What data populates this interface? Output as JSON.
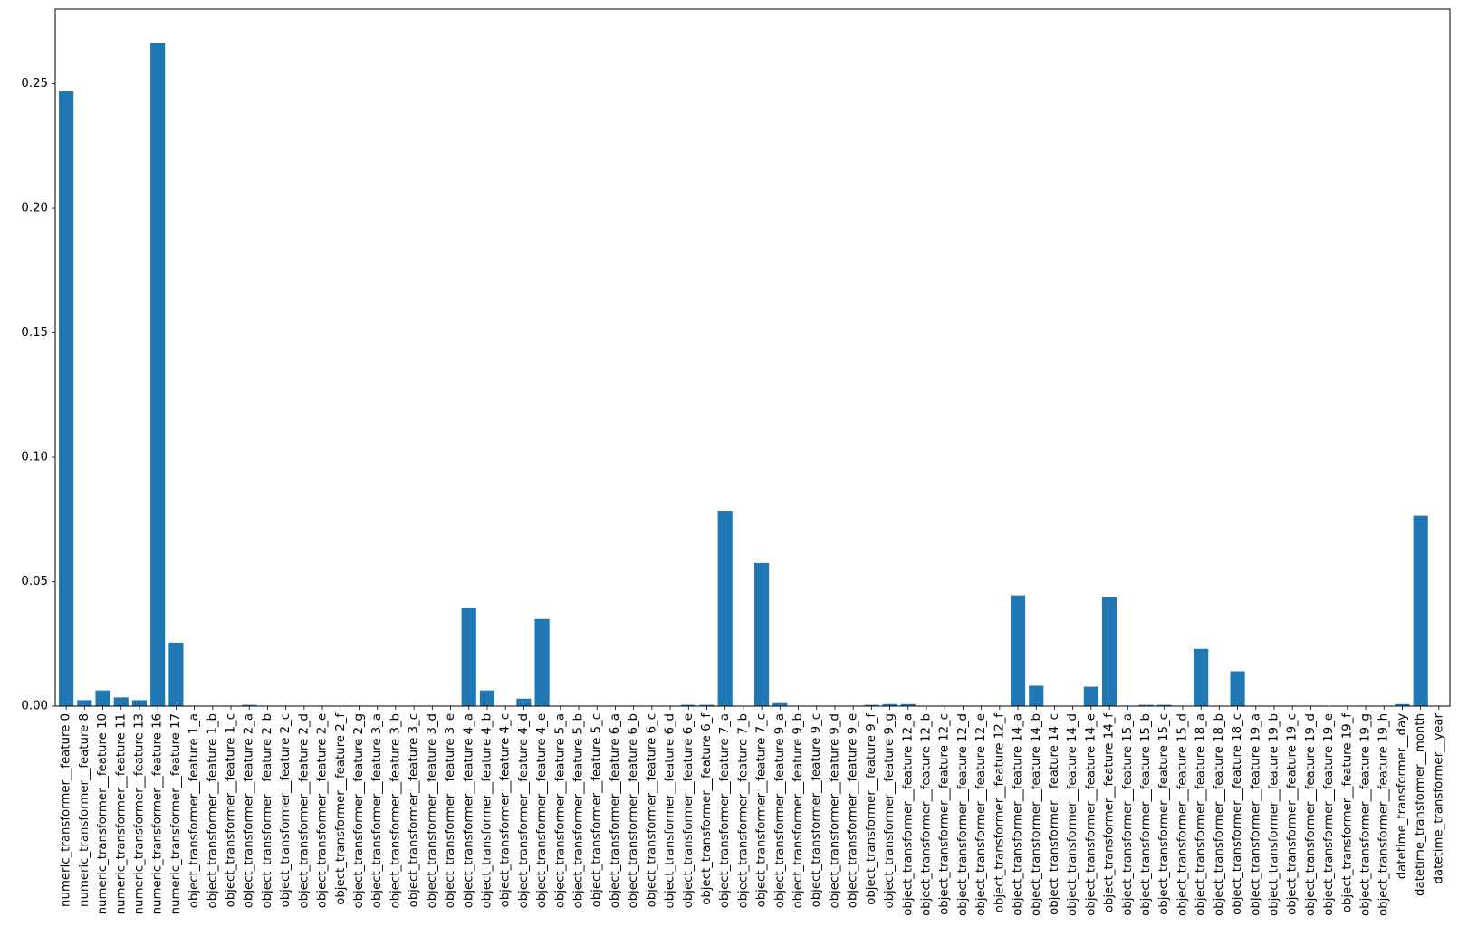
{
  "chart_data": {
    "type": "bar",
    "title": "",
    "xlabel": "",
    "ylabel": "",
    "ylim": [
      0,
      0.28
    ],
    "yticks": [
      0.0,
      0.05,
      0.1,
      0.15,
      0.2,
      0.25
    ],
    "ytick_labels": [
      "0.00",
      "0.05",
      "0.10",
      "0.15",
      "0.20",
      "0.25"
    ],
    "grid": false,
    "bar_color": "#1f77b4",
    "categories": [
      "numeric_transformer__feature 0",
      "numeric_transformer__feature 8",
      "numeric_transformer__feature 10",
      "numeric_transformer__feature 11",
      "numeric_transformer__feature 13",
      "numeric_transformer__feature 16",
      "numeric_transformer__feature 17",
      "object_transformer__feature 1_a",
      "object_transformer__feature 1_b",
      "object_transformer__feature 1_c",
      "object_transformer__feature 2_a",
      "object_transformer__feature 2_b",
      "object_transformer__feature 2_c",
      "object_transformer__feature 2_d",
      "object_transformer__feature 2_e",
      "object_transformer__feature 2_f",
      "object_transformer__feature 2_g",
      "object_transformer__feature 3_a",
      "object_transformer__feature 3_b",
      "object_transformer__feature 3_c",
      "object_transformer__feature 3_d",
      "object_transformer__feature 3_e",
      "object_transformer__feature 4_a",
      "object_transformer__feature 4_b",
      "object_transformer__feature 4_c",
      "object_transformer__feature 4_d",
      "object_transformer__feature 4_e",
      "object_transformer__feature 5_a",
      "object_transformer__feature 5_b",
      "object_transformer__feature 5_c",
      "object_transformer__feature 6_a",
      "object_transformer__feature 6_b",
      "object_transformer__feature 6_c",
      "object_transformer__feature 6_d",
      "object_transformer__feature 6_e",
      "object_transformer__feature 6_f",
      "object_transformer__feature 7_a",
      "object_transformer__feature 7_b",
      "object_transformer__feature 7_c",
      "object_transformer__feature 9_a",
      "object_transformer__feature 9_b",
      "object_transformer__feature 9_c",
      "object_transformer__feature 9_d",
      "object_transformer__feature 9_e",
      "object_transformer__feature 9_f",
      "object_transformer__feature 9_g",
      "object_transformer__feature 12_a",
      "object_transformer__feature 12_b",
      "object_transformer__feature 12_c",
      "object_transformer__feature 12_d",
      "object_transformer__feature 12_e",
      "object_transformer__feature 12_f",
      "object_transformer__feature 14_a",
      "object_transformer__feature 14_b",
      "object_transformer__feature 14_c",
      "object_transformer__feature 14_d",
      "object_transformer__feature 14_e",
      "object_transformer__feature 14_f",
      "object_transformer__feature 15_a",
      "object_transformer__feature 15_b",
      "object_transformer__feature 15_c",
      "object_transformer__feature 15_d",
      "object_transformer__feature 18_a",
      "object_transformer__feature 18_b",
      "object_transformer__feature 18_c",
      "object_transformer__feature 19_a",
      "object_transformer__feature 19_b",
      "object_transformer__feature 19_c",
      "object_transformer__feature 19_d",
      "object_transformer__feature 19_e",
      "object_transformer__feature 19_f",
      "object_transformer__feature 19_g",
      "object_transformer__feature 19_h",
      "datetime_transformer__day",
      "datetime_transformer__month",
      "datetime_transformer__year"
    ],
    "values": [
      0.247,
      0.0024,
      0.0063,
      0.0035,
      0.0024,
      0.2663,
      0.0255,
      0.0,
      0.0,
      0.0,
      0.0005,
      0.0,
      0.0,
      0.0,
      0.0,
      0.0,
      0.0,
      0.0,
      0.0,
      0.0,
      0.0,
      0.0,
      0.0393,
      0.0063,
      0.0,
      0.003,
      0.035,
      0.0,
      0.0,
      0.0,
      0.0,
      0.0,
      0.0,
      0.0,
      0.0005,
      0.0005,
      0.0782,
      0.0,
      0.0575,
      0.0012,
      0.0,
      0.0,
      0.0,
      0.0,
      0.0005,
      0.0008,
      0.0008,
      0.0,
      0.0,
      0.0,
      0.0,
      0.0,
      0.0445,
      0.0082,
      0.0,
      0.0,
      0.0078,
      0.0437,
      0.0,
      0.0005,
      0.0005,
      0.0,
      0.023,
      0.0,
      0.014,
      0.0,
      0.0,
      0.0,
      0.0,
      0.0,
      0.0,
      0.0,
      0.0,
      0.0008,
      0.0765,
      0.0
    ]
  }
}
